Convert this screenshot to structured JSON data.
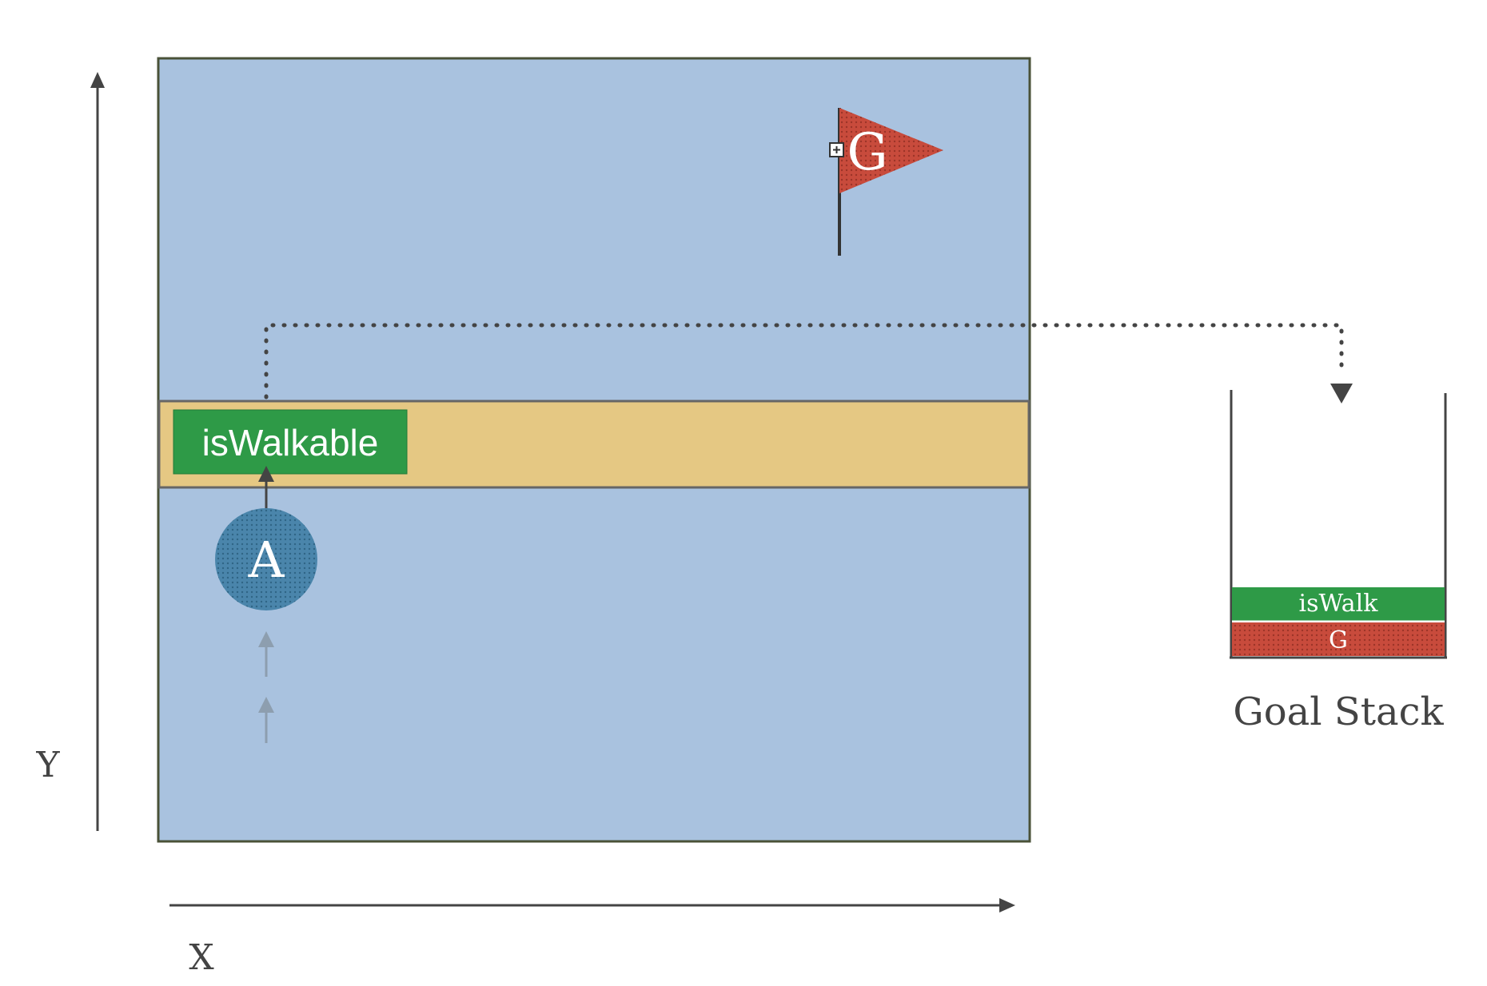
{
  "axes": {
    "x_label": "X",
    "y_label": "Y"
  },
  "agent": {
    "label": "A",
    "color": "#4a85ab"
  },
  "goal": {
    "label": "G",
    "color": "#c84b3c"
  },
  "walkable_band": {
    "label": "isWalkable",
    "band_color": "#e5c883",
    "label_color": "#2e9a47"
  },
  "goal_stack": {
    "title": "Goal Stack",
    "items": [
      {
        "label": "isWalk",
        "color": "#2e9a47"
      },
      {
        "label": "G",
        "color": "#c84b3c"
      }
    ]
  },
  "colors": {
    "field": "#a9c2df",
    "field_border": "#4a5238",
    "axis": "#444444"
  }
}
